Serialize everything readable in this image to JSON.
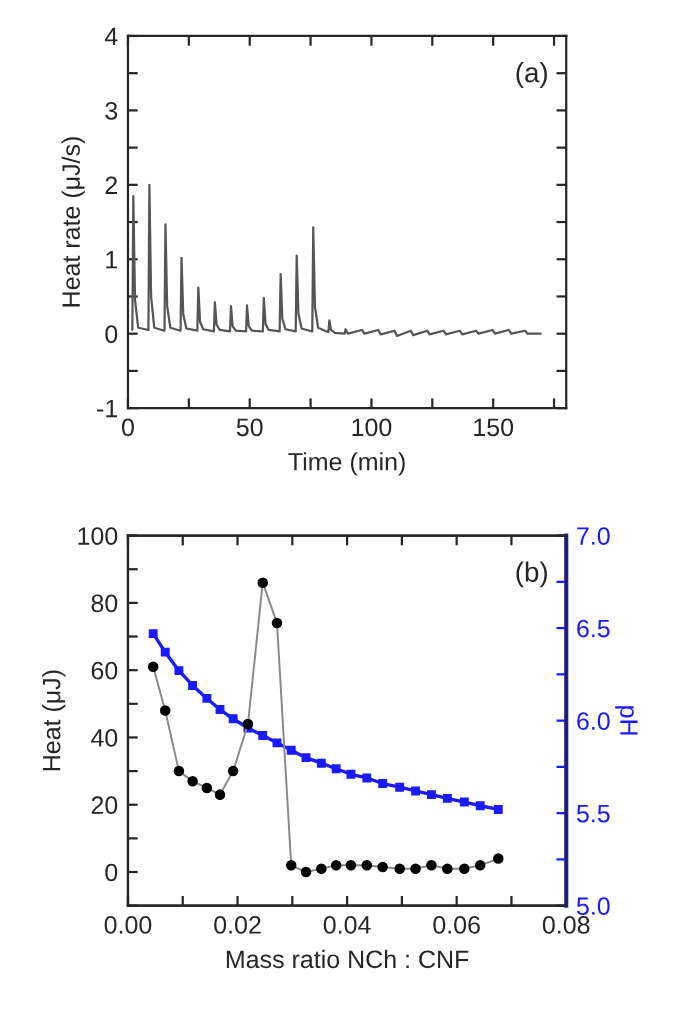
{
  "chart_data": [
    {
      "type": "line",
      "xlabel": "Time (min)",
      "ylabel": "Heat rate (μJ/s)",
      "annotations": [
        "(a)"
      ],
      "grid": false,
      "marker": "none",
      "line_style": "solid",
      "xlim": [
        0,
        180
      ],
      "xticks": [
        0,
        {
          "value": 25,
          "label": null
        },
        50,
        {
          "value": 75,
          "label": null
        },
        100,
        {
          "value": 125,
          "label": null
        },
        150,
        {
          "value": 175,
          "label": null
        }
      ],
      "ylim": [
        -1,
        4
      ],
      "yticks": [
        -1,
        {
          "value": -0.5,
          "label": null
        },
        0,
        {
          "value": 0.5,
          "label": null
        },
        1,
        {
          "value": 1.5,
          "label": null
        },
        2,
        {
          "value": 2.5,
          "label": null
        },
        3,
        {
          "value": 3.5,
          "label": null
        },
        4
      ],
      "series": [
        {
          "color": "#555555",
          "x": [
            1.8,
            2.2,
            2.9,
            4.2,
            8.4,
            8.8,
            9.5,
            10.8,
            15.0,
            15.4,
            16.1,
            17.4,
            21.6,
            22.0,
            22.7,
            24.0,
            28.5,
            28.9,
            29.6,
            30.9,
            35.3,
            35.7,
            36.4,
            37.7,
            41.9,
            42.3,
            43.0,
            44.3,
            48.5,
            48.9,
            49.6,
            50.9,
            55.4,
            55.8,
            56.5,
            57.8,
            62.3,
            62.7,
            63.4,
            64.7,
            68.9,
            69.3,
            70.0,
            71.3,
            75.7,
            76.1,
            76.8,
            78.1,
            82.3,
            82.7,
            83.4,
            85.0,
            89.0,
            89.4,
            90.4,
            96.1,
            97.1,
            102.8,
            103.8,
            109.5,
            110.5,
            116.2,
            117.2,
            122.9,
            123.9,
            129.6,
            130.6,
            136.3,
            137.3,
            143.0,
            144.0,
            149.7,
            150.7,
            156.4,
            157.4,
            163.1,
            164.1,
            169.5
          ],
          "values": [
            0.05,
            1.85,
            0.45,
            0.08,
            0.05,
            2.0,
            0.5,
            0.08,
            0.04,
            1.47,
            0.37,
            0.08,
            0.04,
            1.02,
            0.26,
            0.07,
            0.04,
            0.62,
            0.16,
            0.06,
            0.03,
            0.42,
            0.12,
            0.05,
            0.03,
            0.37,
            0.1,
            0.04,
            0.03,
            0.38,
            0.1,
            0.04,
            0.03,
            0.48,
            0.13,
            0.05,
            0.03,
            0.8,
            0.2,
            0.06,
            0.03,
            1.05,
            0.27,
            0.07,
            0.03,
            1.43,
            0.36,
            0.08,
            0.02,
            0.18,
            0.05,
            0.01,
            0.0,
            0.06,
            0.0,
            0.05,
            0.0,
            0.05,
            -0.01,
            0.04,
            -0.03,
            0.04,
            -0.02,
            0.04,
            -0.01,
            0.04,
            -0.01,
            0.04,
            -0.01,
            0.04,
            0.0,
            0.05,
            0.0,
            0.05,
            0.0,
            0.04,
            0.0,
            0.0
          ]
        }
      ]
    },
    {
      "type": "line",
      "xlabel": "Mass ratio NCh : CNF",
      "ylabel": "Heat (μJ)",
      "y2label": "pH",
      "annotations": [
        "(b)"
      ],
      "grid": false,
      "line_style": "solid",
      "xlim": [
        0,
        0.08
      ],
      "xticks": [
        {
          "value": 0,
          "label": "0.00"
        },
        {
          "value": 0.01,
          "label": null
        },
        {
          "value": 0.02,
          "label": "0.02"
        },
        {
          "value": 0.03,
          "label": null
        },
        {
          "value": 0.04,
          "label": "0.04"
        },
        {
          "value": 0.05,
          "label": null
        },
        {
          "value": 0.06,
          "label": "0.06"
        },
        {
          "value": 0.07,
          "label": null
        },
        {
          "value": 0.08,
          "label": "0.08"
        }
      ],
      "ylim": [
        -10,
        100
      ],
      "yticks": [
        {
          "value": -10,
          "label": null
        },
        0,
        {
          "value": 10,
          "label": null
        },
        20,
        {
          "value": 30,
          "label": null
        },
        40,
        {
          "value": 50,
          "label": null
        },
        60,
        {
          "value": 70,
          "label": null
        },
        80,
        {
          "value": 90,
          "label": null
        },
        100
      ],
      "y2lim": [
        5.0,
        7.0
      ],
      "y2ticks": [
        {
          "value": 5.0,
          "label": "5.0"
        },
        {
          "value": 5.25,
          "label": null
        },
        {
          "value": 5.5,
          "label": "5.5"
        },
        {
          "value": 5.75,
          "label": null
        },
        {
          "value": 6.0,
          "label": "6.0"
        },
        {
          "value": 6.25,
          "label": null
        },
        {
          "value": 6.5,
          "label": "6.5"
        },
        {
          "value": 6.75,
          "label": null
        },
        {
          "value": 7.0,
          "label": "7.0"
        }
      ],
      "x": [
        0.0046,
        0.0068,
        0.0093,
        0.0118,
        0.0144,
        0.0168,
        0.0192,
        0.0219,
        0.0246,
        0.0272,
        0.0298,
        0.0325,
        0.0353,
        0.038,
        0.0407,
        0.0436,
        0.0465,
        0.0496,
        0.0525,
        0.0554,
        0.0583,
        0.0614,
        0.0643,
        0.0676
      ],
      "series": [
        {
          "color": "#000000",
          "marker": "circle",
          "values": [
            61,
            48,
            30,
            27,
            25,
            23,
            30,
            44,
            86,
            74,
            2,
            0,
            1,
            2,
            2,
            2,
            1.5,
            1,
            1,
            2,
            1,
            1,
            2,
            4
          ]
        },
        {
          "color": "#1a1aff",
          "marker": "square",
          "axis": "y2",
          "values": [
            6.47,
            6.37,
            6.27,
            6.19,
            6.12,
            6.06,
            6.01,
            5.96,
            5.92,
            5.88,
            5.84,
            5.8,
            5.77,
            5.74,
            5.71,
            5.69,
            5.66,
            5.64,
            5.62,
            5.6,
            5.58,
            5.56,
            5.54,
            5.52
          ]
        }
      ]
    }
  ]
}
